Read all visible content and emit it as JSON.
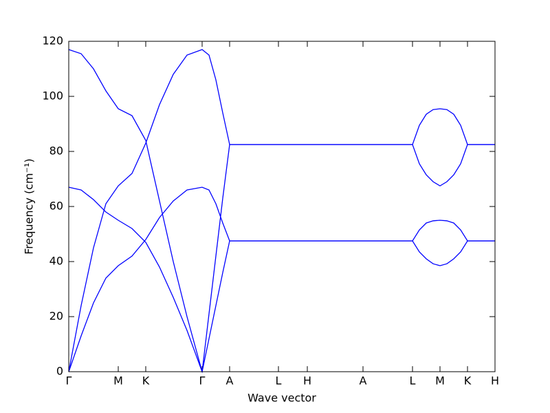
{
  "chart_data": {
    "type": "line",
    "xlabel": "Wave vector",
    "ylabel": "Frequency (cm⁻¹)",
    "x": [
      0,
      0.18,
      0.36,
      0.54,
      0.72,
      0.92,
      1.12,
      1.32,
      1.52,
      1.72,
      1.94,
      2.04,
      2.14,
      2.24,
      2.34,
      5.0,
      5.1,
      5.2,
      5.3,
      5.4,
      5.5,
      5.6,
      5.7,
      5.8,
      6.2
    ],
    "series": [
      {
        "color": "#0000ff",
        "values": [
          117,
          115.5,
          110,
          102,
          95.5,
          93,
          84,
          62,
          40,
          20,
          0,
          21,
          42,
          63,
          82.5,
          82.5,
          89.5,
          93.5,
          95.2,
          95.5,
          95.2,
          93.5,
          89.5,
          82.5,
          82.5
        ]
      },
      {
        "color": "#0000ff",
        "values": [
          67,
          66,
          62.5,
          58,
          55,
          52,
          47,
          38,
          27,
          15,
          0,
          12,
          24,
          36,
          47.5,
          47.5,
          51.5,
          54,
          54.8,
          55,
          54.8,
          54,
          51.5,
          47.5,
          47.5
        ]
      },
      {
        "color": "#0000ff",
        "values": [
          0,
          24,
          45,
          61,
          67.5,
          72,
          83,
          97,
          108,
          115,
          117,
          115,
          106,
          94,
          82.5,
          82.5,
          75.5,
          71.5,
          69,
          67.5,
          69,
          71.5,
          75.5,
          82.5,
          82.5
        ]
      },
      {
        "color": "#0000ff",
        "values": [
          0,
          13,
          25,
          34,
          38.5,
          42,
          48,
          56,
          62,
          66,
          67,
          66,
          61,
          54,
          47.5,
          47.5,
          43.5,
          41,
          39.2,
          38.5,
          39.2,
          41,
          43.5,
          47.5,
          47.5
        ]
      }
    ],
    "xlim": [
      0,
      6.2
    ],
    "xticks": [
      {
        "value": 0,
        "label": "Γ"
      },
      {
        "value": 0.72,
        "label": "M"
      },
      {
        "value": 1.12,
        "label": "K"
      },
      {
        "value": 1.94,
        "label": "Γ"
      },
      {
        "value": 2.34,
        "label": "A"
      },
      {
        "value": 3.05,
        "label": "L"
      },
      {
        "value": 3.47,
        "label": "H"
      },
      {
        "value": 4.28,
        "label": "A"
      },
      {
        "value": 5.0,
        "label": "L"
      },
      {
        "value": 5.4,
        "label": "M"
      },
      {
        "value": 5.8,
        "label": "K"
      },
      {
        "value": 6.2,
        "label": "H"
      }
    ],
    "ylim": [
      0,
      120
    ],
    "yticks": [
      0,
      20,
      40,
      60,
      80,
      100,
      120
    ]
  }
}
